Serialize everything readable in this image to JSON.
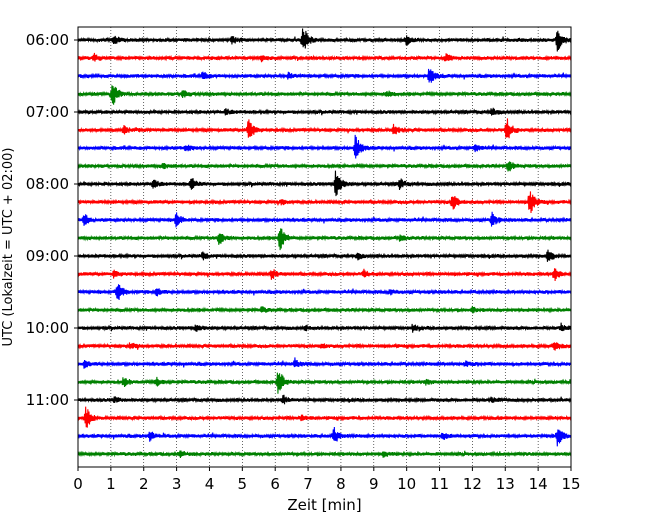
{
  "chart_data": {
    "type": "line",
    "title": "",
    "xlabel": "Zeit  [min]",
    "ylabel": "UTC (Lokalzeit = UTC + 02:00)",
    "xlim": [
      0,
      15
    ],
    "x_ticks": [
      0,
      1,
      2,
      3,
      4,
      5,
      6,
      7,
      8,
      9,
      10,
      11,
      12,
      13,
      14,
      15
    ],
    "y_ticks": [
      {
        "row": 0,
        "label": "06:00"
      },
      {
        "row": 4,
        "label": "07:00"
      },
      {
        "row": 8,
        "label": "08:00"
      },
      {
        "row": 12,
        "label": "09:00"
      },
      {
        "row": 16,
        "label": "10:00"
      },
      {
        "row": 20,
        "label": "11:00"
      }
    ],
    "vertical_gridlines": true,
    "row_interval_min": 15,
    "row_colors": [
      "#000000",
      "#ff0000",
      "#0000ff",
      "#008000"
    ],
    "rows": [
      {
        "start": "06:00",
        "events": [
          {
            "t": 6.85,
            "amp": 2.6
          },
          {
            "t": 14.6,
            "amp": 2.0
          },
          {
            "t": 4.7,
            "amp": 0.7
          },
          {
            "t": 10.0,
            "amp": 0.8
          },
          {
            "t": 1.1,
            "amp": 0.6
          }
        ]
      },
      {
        "start": "06:15",
        "events": [
          {
            "t": 0.5,
            "amp": 0.6
          },
          {
            "t": 5.6,
            "amp": 0.5
          },
          {
            "t": 11.2,
            "amp": 0.6
          }
        ]
      },
      {
        "start": "06:30",
        "events": [
          {
            "t": 10.7,
            "amp": 1.6
          },
          {
            "t": 3.8,
            "amp": 0.6
          },
          {
            "t": 6.4,
            "amp": 0.5
          }
        ]
      },
      {
        "start": "06:45",
        "events": [
          {
            "t": 1.05,
            "amp": 2.2
          },
          {
            "t": 3.2,
            "amp": 0.6
          },
          {
            "t": 9.4,
            "amp": 0.5
          }
        ]
      },
      {
        "start": "07:00",
        "events": [
          {
            "t": 12.6,
            "amp": 0.6
          },
          {
            "t": 4.5,
            "amp": 0.5
          }
        ]
      },
      {
        "start": "07:15",
        "events": [
          {
            "t": 5.2,
            "amp": 2.0
          },
          {
            "t": 13.05,
            "amp": 2.2
          },
          {
            "t": 9.6,
            "amp": 0.9
          },
          {
            "t": 1.4,
            "amp": 0.6
          }
        ]
      },
      {
        "start": "07:30",
        "events": [
          {
            "t": 8.45,
            "amp": 2.4
          },
          {
            "t": 3.3,
            "amp": 0.5
          },
          {
            "t": 12.1,
            "amp": 0.5
          }
        ]
      },
      {
        "start": "07:45",
        "events": [
          {
            "t": 13.1,
            "amp": 0.9
          },
          {
            "t": 2.6,
            "amp": 0.4
          }
        ]
      },
      {
        "start": "08:00",
        "events": [
          {
            "t": 7.85,
            "amp": 2.4
          },
          {
            "t": 3.45,
            "amp": 1.2
          },
          {
            "t": 2.3,
            "amp": 0.8
          },
          {
            "t": 9.8,
            "amp": 0.9
          }
        ]
      },
      {
        "start": "08:15",
        "events": [
          {
            "t": 13.75,
            "amp": 2.2
          },
          {
            "t": 11.4,
            "amp": 1.4
          },
          {
            "t": 6.2,
            "amp": 0.4
          }
        ]
      },
      {
        "start": "08:30",
        "events": [
          {
            "t": 3.0,
            "amp": 1.3
          },
          {
            "t": 12.6,
            "amp": 1.3
          },
          {
            "t": 0.2,
            "amp": 1.0
          }
        ]
      },
      {
        "start": "08:45",
        "events": [
          {
            "t": 6.15,
            "amp": 2.2
          },
          {
            "t": 4.3,
            "amp": 1.1
          },
          {
            "t": 9.8,
            "amp": 0.4
          }
        ]
      },
      {
        "start": "09:00",
        "events": [
          {
            "t": 14.3,
            "amp": 1.3
          },
          {
            "t": 3.8,
            "amp": 0.6
          },
          {
            "t": 8.5,
            "amp": 0.5
          }
        ]
      },
      {
        "start": "09:15",
        "events": [
          {
            "t": 14.5,
            "amp": 1.3
          },
          {
            "t": 5.9,
            "amp": 0.8
          },
          {
            "t": 8.7,
            "amp": 0.6
          },
          {
            "t": 1.1,
            "amp": 0.6
          }
        ]
      },
      {
        "start": "09:30",
        "events": [
          {
            "t": 1.2,
            "amp": 1.9
          },
          {
            "t": 2.4,
            "amp": 0.6
          },
          {
            "t": 9.5,
            "amp": 0.4
          }
        ]
      },
      {
        "start": "09:45",
        "events": [
          {
            "t": 5.6,
            "amp": 0.4
          },
          {
            "t": 12.0,
            "amp": 0.4
          }
        ]
      },
      {
        "start": "10:00",
        "events": [
          {
            "t": 14.7,
            "amp": 0.6
          },
          {
            "t": 10.2,
            "amp": 0.6
          },
          {
            "t": 3.6,
            "amp": 0.5
          },
          {
            "t": 6.9,
            "amp": 0.4
          }
        ]
      },
      {
        "start": "10:15",
        "events": [
          {
            "t": 14.5,
            "amp": 0.9
          },
          {
            "t": 1.6,
            "amp": 0.5
          },
          {
            "t": 7.4,
            "amp": 0.4
          }
        ]
      },
      {
        "start": "10:30",
        "events": [
          {
            "t": 6.6,
            "amp": 0.8
          },
          {
            "t": 0.2,
            "amp": 0.6
          },
          {
            "t": 11.8,
            "amp": 0.4
          }
        ]
      },
      {
        "start": "10:45",
        "events": [
          {
            "t": 6.1,
            "amp": 2.3
          },
          {
            "t": 1.4,
            "amp": 0.8
          },
          {
            "t": 2.4,
            "amp": 0.7
          },
          {
            "t": 10.6,
            "amp": 0.4
          }
        ]
      },
      {
        "start": "11:00",
        "events": [
          {
            "t": 6.25,
            "amp": 0.7
          },
          {
            "t": 1.1,
            "amp": 0.5
          },
          {
            "t": 12.6,
            "amp": 0.4
          }
        ]
      },
      {
        "start": "11:15",
        "events": [
          {
            "t": 0.25,
            "amp": 1.9
          },
          {
            "t": 6.8,
            "amp": 0.4
          }
        ]
      },
      {
        "start": "11:30",
        "events": [
          {
            "t": 14.6,
            "amp": 1.8
          },
          {
            "t": 7.8,
            "amp": 1.3
          },
          {
            "t": 2.2,
            "amp": 0.8
          },
          {
            "t": 11.1,
            "amp": 0.6
          }
        ]
      },
      {
        "start": "11:45",
        "events": [
          {
            "t": 3.1,
            "amp": 0.5
          },
          {
            "t": 9.3,
            "amp": 0.4
          }
        ]
      }
    ]
  }
}
